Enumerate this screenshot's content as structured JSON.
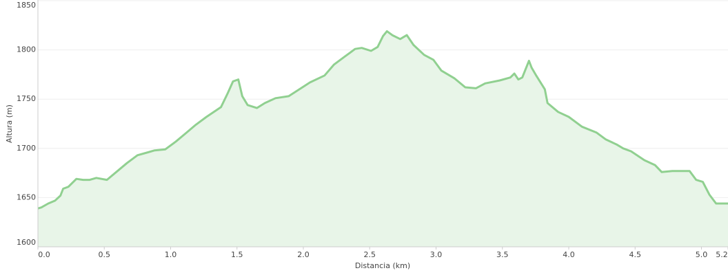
{
  "chart_data": {
    "type": "area",
    "x_label": "Distancia   (km)",
    "y_label": "Altura (m)",
    "x": [
      0,
      0.026,
      0.078,
      0.13,
      0.17,
      0.19,
      0.23,
      0.29,
      0.34,
      0.39,
      0.44,
      0.52,
      0.6,
      0.67,
      0.75,
      0.83,
      0.88,
      0.96,
      1.04,
      1.12,
      1.19,
      1.27,
      1.38,
      1.43,
      1.47,
      1.51,
      1.54,
      1.58,
      1.65,
      1.71,
      1.79,
      1.89,
      1.97,
      2.05,
      2.16,
      2.23,
      2.31,
      2.39,
      2.44,
      2.51,
      2.56,
      2.6,
      2.63,
      2.67,
      2.73,
      2.78,
      2.83,
      2.91,
      2.98,
      3.04,
      3.14,
      3.22,
      3.3,
      3.37,
      3.48,
      3.56,
      3.59,
      3.62,
      3.65,
      3.7,
      3.72,
      3.75,
      3.82,
      3.84,
      3.92,
      4.0,
      4.1,
      4.21,
      4.28,
      4.36,
      4.41,
      4.47,
      4.57,
      4.65,
      4.7,
      4.78,
      4.85,
      4.91,
      4.96,
      5.01,
      5.06,
      5.11,
      5.2
    ],
    "series": [
      {
        "color": "#90d090",
        "fill": "#e8f5e8",
        "values": [
          1639,
          1640,
          1644,
          1647,
          1652,
          1659,
          1661,
          1669,
          1668,
          1668,
          1670,
          1668,
          1677,
          1685,
          1693,
          1696,
          1698,
          1699,
          1707,
          1716,
          1724,
          1732,
          1742,
          1756,
          1768,
          1770,
          1753,
          1744,
          1741,
          1746,
          1751,
          1753,
          1760,
          1767,
          1774,
          1785,
          1793,
          1801,
          1802,
          1799,
          1803,
          1814,
          1819,
          1815,
          1811,
          1815,
          1805,
          1795,
          1790,
          1779,
          1771,
          1762,
          1761,
          1766,
          1769,
          1772,
          1776,
          1770,
          1772,
          1789,
          1782,
          1775,
          1760,
          1746,
          1737,
          1732,
          1722,
          1716,
          1709,
          1704,
          1700,
          1697,
          1688,
          1683,
          1676,
          1677,
          1677,
          1677,
          1668,
          1666,
          1653,
          1644,
          1644
        ]
      }
    ],
    "xlim": [
      0,
      5.2
    ],
    "xticks": [
      {
        "value": 0,
        "label": "0.0"
      },
      0.5,
      {
        "value": 1,
        "label": "1.0"
      },
      1.5,
      {
        "value": 2,
        "label": "2.0"
      },
      2.5,
      {
        "value": 3,
        "label": "3.0"
      },
      3.5,
      {
        "value": 4,
        "label": "4.0"
      },
      4.5,
      {
        "value": 5,
        "label": "5.0"
      },
      5.2
    ],
    "ylim": [
      1600,
      1850
    ],
    "yticks": [
      1600,
      1650,
      1700,
      1750,
      1800,
      1850
    ],
    "grid": true
  }
}
